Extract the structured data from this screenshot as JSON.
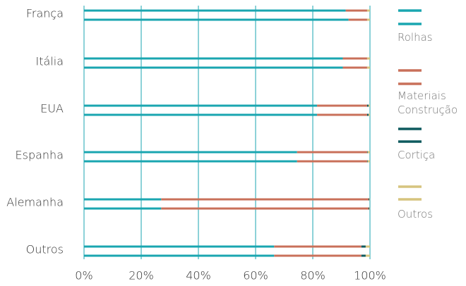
{
  "chart_data": {
    "type": "bar",
    "orientation": "horizontal",
    "stacked": true,
    "normalized": true,
    "categories": [
      "França",
      "Itália",
      "EUA",
      "Espanha",
      "Alemanha",
      "Outros"
    ],
    "bars_per_category": 2,
    "series": [
      {
        "name": "Rolhas",
        "color": "#1aa6b0",
        "values": [
          [
            91.5,
            92.5
          ],
          [
            90.5,
            90.5
          ],
          [
            81.5,
            81.5
          ],
          [
            74.5,
            74.5
          ],
          [
            27,
            27
          ],
          [
            66.5,
            66.5
          ]
        ]
      },
      {
        "name": "Materiais Construção",
        "color": "#c9705a",
        "values": [
          [
            7.5,
            6.5
          ],
          [
            8.5,
            8.5
          ],
          [
            17.5,
            17.5
          ],
          [
            24.5,
            24.5
          ],
          [
            72.5,
            72.5
          ],
          [
            30.5,
            30.5
          ]
        ]
      },
      {
        "name": "Cortiça",
        "color": "#0e5a5e",
        "values": [
          [
            0,
            0
          ],
          [
            0,
            0
          ],
          [
            0.5,
            0.5
          ],
          [
            0.2,
            0.2
          ],
          [
            0.3,
            0.3
          ],
          [
            1.5,
            1.5
          ]
        ]
      },
      {
        "name": "Outros",
        "color": "#d6c47e",
        "values": [
          [
            1,
            1
          ],
          [
            1,
            1
          ],
          [
            0.5,
            0.5
          ],
          [
            0.8,
            0.8
          ],
          [
            0.2,
            0.2
          ],
          [
            1.5,
            1.5
          ]
        ]
      }
    ],
    "x_ticks": [
      "0%",
      "20%",
      "40%",
      "60%",
      "80%",
      "100%"
    ],
    "xlim": [
      0,
      100
    ],
    "grid": "vertical",
    "legend_position": "right",
    "gridline_color": "#1aa6b0"
  }
}
